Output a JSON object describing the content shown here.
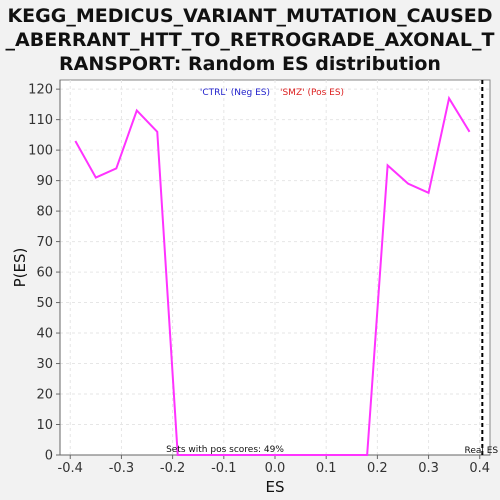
{
  "chart_data": {
    "type": "line",
    "title_lines": [
      "KEGG_MEDICUS_VARIANT_MUTATION_CAUSED",
      "_ABERRANT_HTT_TO_RETROGRADE_AXONAL_T",
      "RANSPORT: Random ES distribution"
    ],
    "xlabel": "ES",
    "ylabel": "P(ES)",
    "xlim": [
      -0.42,
      0.42
    ],
    "ylim": [
      0,
      123
    ],
    "x_ticks": [
      -0.4,
      -0.3,
      -0.2,
      -0.1,
      0.0,
      0.1,
      0.2,
      0.3,
      0.4
    ],
    "x_tick_labels": [
      "-0.4",
      "-0.3",
      "-0.2",
      "-0.1",
      "0.0",
      "0.1",
      "0.2",
      "0.3",
      "0.4"
    ],
    "y_ticks": [
      0,
      10,
      20,
      30,
      40,
      50,
      60,
      70,
      80,
      90,
      100,
      110,
      120
    ],
    "y_tick_labels": [
      "0",
      "10",
      "20",
      "30",
      "40",
      "50",
      "60",
      "70",
      "80",
      "90",
      "100",
      "110",
      "120"
    ],
    "grid": true,
    "series": [
      {
        "color": "#ff33ff",
        "x": [
          -0.39,
          -0.35,
          -0.31,
          -0.27,
          -0.23,
          -0.19,
          0.18,
          0.22,
          0.26,
          0.3,
          0.34,
          0.38
        ],
        "y": [
          103,
          91,
          94,
          113,
          106,
          0,
          0,
          95,
          89,
          86,
          117,
          106
        ]
      }
    ],
    "legend": {
      "placement": "top-center",
      "entries": [
        {
          "label": "'CTRL' (Neg ES)",
          "color": "#2222cc"
        },
        {
          "label": "'SMZ' (Pos ES)",
          "color": "#dd2222"
        }
      ]
    },
    "real_es": {
      "x": 0.405,
      "label": "Real ES"
    },
    "annotation": "Sets with pos scores: 49%"
  },
  "colors": {
    "background": "#f2f2f2",
    "plot_background": "#ffffff",
    "grid": "#e6e6e6",
    "series": "#ff33ff",
    "real_es_line": "#000000"
  }
}
